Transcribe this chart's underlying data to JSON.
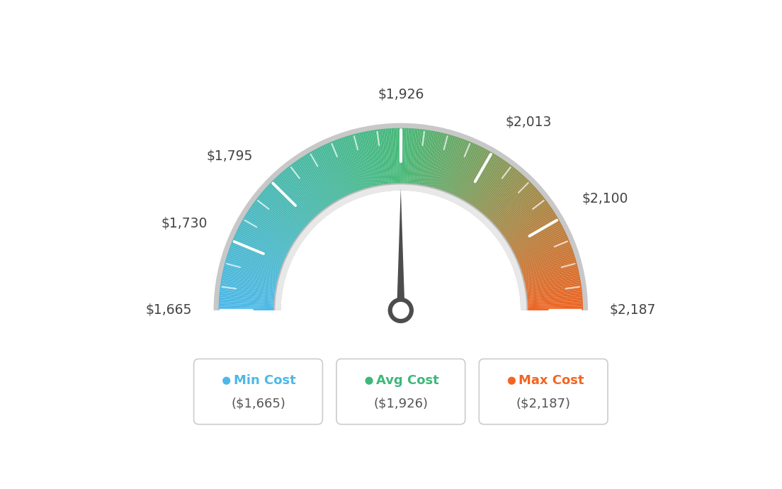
{
  "min_val": 1665,
  "avg_val": 1926,
  "max_val": 2187,
  "tick_labels": [
    "$1,665",
    "$1,730",
    "$1,795",
    "$1,926",
    "$2,013",
    "$2,100",
    "$2,187"
  ],
  "tick_values": [
    1665,
    1730,
    1795,
    1926,
    2013,
    2100,
    2187
  ],
  "legend": [
    {
      "label": "Min Cost",
      "sublabel": "($1,665)",
      "color": "#4db8e8"
    },
    {
      "label": "Avg Cost",
      "sublabel": "($1,926)",
      "color": "#3eb87a"
    },
    {
      "label": "Max Cost",
      "sublabel": "($2,187)",
      "color": "#f26522"
    }
  ],
  "background_color": "#ffffff",
  "needle_color": "#555555"
}
